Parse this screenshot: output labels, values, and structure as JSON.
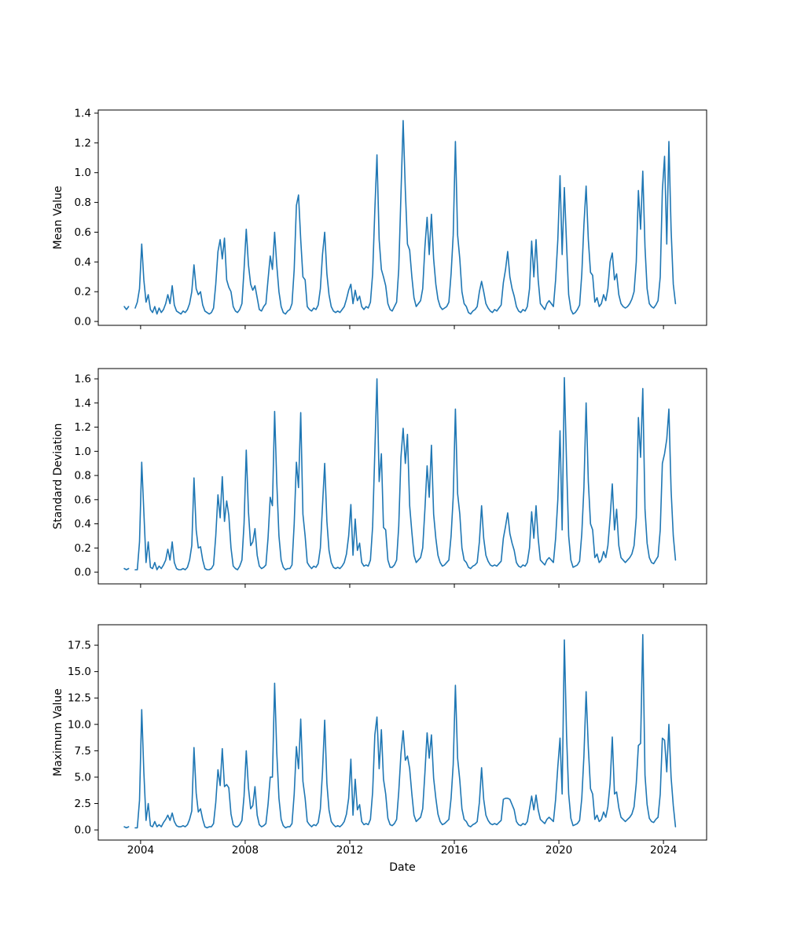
{
  "figure": {
    "background_color": "#ffffff",
    "series_color": "#1f77b4",
    "spine_color": "#000000"
  },
  "chart_data": [
    {
      "type": "line",
      "name": "mean",
      "title": "",
      "xlabel": "",
      "ylabel": "Mean Value",
      "x_frequency": "monthly",
      "x_start": 2003.375,
      "x_step_years": 0.0833333,
      "xlim": [
        2002.38,
        2025.65
      ],
      "ylim": [
        -0.026,
        1.421
      ],
      "xticks": [
        2004,
        2008,
        2012,
        2016,
        2020,
        2024
      ],
      "yticks": [
        0.0,
        0.2,
        0.4,
        0.6,
        0.8,
        1.0,
        1.2,
        1.4
      ],
      "show_xtick_labels": false,
      "legend": "off",
      "grid": "off",
      "values": [
        0.1,
        0.08,
        0.1,
        null,
        null,
        0.09,
        0.13,
        0.22,
        0.52,
        0.28,
        0.13,
        0.18,
        0.08,
        0.06,
        0.1,
        0.05,
        0.09,
        0.06,
        0.08,
        0.12,
        0.18,
        0.12,
        0.24,
        0.11,
        0.07,
        0.06,
        0.05,
        0.07,
        0.06,
        0.08,
        0.12,
        0.2,
        0.38,
        0.22,
        0.18,
        0.2,
        0.11,
        0.07,
        0.06,
        0.05,
        0.06,
        0.09,
        0.25,
        0.47,
        0.55,
        0.42,
        0.56,
        0.28,
        0.23,
        0.2,
        0.1,
        0.07,
        0.06,
        0.08,
        0.12,
        0.35,
        0.62,
        0.38,
        0.25,
        0.21,
        0.24,
        0.16,
        0.08,
        0.07,
        0.1,
        0.12,
        0.28,
        0.44,
        0.35,
        0.6,
        0.38,
        0.2,
        0.1,
        0.06,
        0.05,
        0.07,
        0.08,
        0.12,
        0.35,
        0.78,
        0.85,
        0.55,
        0.3,
        0.28,
        0.1,
        0.08,
        0.07,
        0.09,
        0.08,
        0.11,
        0.22,
        0.45,
        0.6,
        0.32,
        0.18,
        0.1,
        0.07,
        0.06,
        0.07,
        0.06,
        0.08,
        0.1,
        0.15,
        0.21,
        0.25,
        0.12,
        0.21,
        0.14,
        0.17,
        0.1,
        0.08,
        0.1,
        0.09,
        0.13,
        0.32,
        0.75,
        1.12,
        0.55,
        0.35,
        0.3,
        0.24,
        0.12,
        0.08,
        0.07,
        0.1,
        0.13,
        0.35,
        0.85,
        1.35,
        0.88,
        0.52,
        0.48,
        0.3,
        0.16,
        0.1,
        0.12,
        0.14,
        0.22,
        0.5,
        0.7,
        0.45,
        0.72,
        0.42,
        0.25,
        0.15,
        0.1,
        0.08,
        0.09,
        0.1,
        0.13,
        0.32,
        0.58,
        1.21,
        0.58,
        0.42,
        0.2,
        0.12,
        0.1,
        0.06,
        0.05,
        0.07,
        0.08,
        0.1,
        0.2,
        0.27,
        0.2,
        0.12,
        0.09,
        0.07,
        0.06,
        0.08,
        0.07,
        0.09,
        0.11,
        0.26,
        0.35,
        0.47,
        0.3,
        0.22,
        0.17,
        0.1,
        0.07,
        0.06,
        0.08,
        0.07,
        0.1,
        0.22,
        0.54,
        0.3,
        0.55,
        0.28,
        0.12,
        0.1,
        0.08,
        0.12,
        0.14,
        0.12,
        0.1,
        0.28,
        0.55,
        0.98,
        0.45,
        0.9,
        0.52,
        0.18,
        0.08,
        0.05,
        0.06,
        0.08,
        0.11,
        0.32,
        0.65,
        0.91,
        0.55,
        0.33,
        0.31,
        0.13,
        0.16,
        0.1,
        0.12,
        0.18,
        0.14,
        0.22,
        0.4,
        0.46,
        0.28,
        0.32,
        0.18,
        0.12,
        0.1,
        0.09,
        0.1,
        0.12,
        0.15,
        0.2,
        0.4,
        0.88,
        0.62,
        1.01,
        0.5,
        0.22,
        0.12,
        0.1,
        0.09,
        0.11,
        0.14,
        0.3,
        0.88,
        1.11,
        0.52,
        1.21,
        0.62,
        0.25,
        0.12
      ]
    },
    {
      "type": "line",
      "name": "std_dev",
      "title": "",
      "xlabel": "",
      "ylabel": "Standard Deviation",
      "x_frequency": "monthly",
      "x_start": 2003.375,
      "x_step_years": 0.0833333,
      "xlim": [
        2002.38,
        2025.65
      ],
      "ylim": [
        -0.097,
        1.685
      ],
      "xticks": [
        2004,
        2008,
        2012,
        2016,
        2020,
        2024
      ],
      "yticks": [
        0.0,
        0.2,
        0.4,
        0.6,
        0.8,
        1.0,
        1.2,
        1.4,
        1.6
      ],
      "show_xtick_labels": false,
      "legend": "off",
      "grid": "off",
      "values": [
        0.03,
        0.02,
        0.03,
        null,
        null,
        0.02,
        0.02,
        0.25,
        0.91,
        0.5,
        0.08,
        0.25,
        0.04,
        0.03,
        0.08,
        0.02,
        0.05,
        0.03,
        0.06,
        0.1,
        0.19,
        0.1,
        0.25,
        0.08,
        0.03,
        0.02,
        0.02,
        0.03,
        0.02,
        0.04,
        0.1,
        0.22,
        0.78,
        0.35,
        0.2,
        0.21,
        0.1,
        0.03,
        0.02,
        0.02,
        0.03,
        0.06,
        0.3,
        0.64,
        0.45,
        0.79,
        0.42,
        0.59,
        0.47,
        0.2,
        0.05,
        0.03,
        0.02,
        0.05,
        0.1,
        0.4,
        1.01,
        0.5,
        0.22,
        0.25,
        0.36,
        0.14,
        0.05,
        0.03,
        0.04,
        0.06,
        0.28,
        0.62,
        0.55,
        1.33,
        0.75,
        0.3,
        0.1,
        0.04,
        0.02,
        0.03,
        0.03,
        0.06,
        0.4,
        0.91,
        0.7,
        1.32,
        0.48,
        0.3,
        0.08,
        0.05,
        0.03,
        0.05,
        0.04,
        0.07,
        0.2,
        0.55,
        0.9,
        0.42,
        0.18,
        0.08,
        0.04,
        0.03,
        0.04,
        0.03,
        0.05,
        0.08,
        0.15,
        0.3,
        0.56,
        0.14,
        0.44,
        0.18,
        0.24,
        0.08,
        0.05,
        0.06,
        0.05,
        0.1,
        0.38,
        1.0,
        1.6,
        0.75,
        0.98,
        0.37,
        0.35,
        0.1,
        0.04,
        0.04,
        0.06,
        0.1,
        0.38,
        0.95,
        1.19,
        0.9,
        1.14,
        0.55,
        0.33,
        0.14,
        0.08,
        0.1,
        0.12,
        0.2,
        0.52,
        0.88,
        0.62,
        1.05,
        0.48,
        0.28,
        0.14,
        0.08,
        0.05,
        0.06,
        0.08,
        0.1,
        0.3,
        0.62,
        1.35,
        0.65,
        0.48,
        0.2,
        0.1,
        0.08,
        0.04,
        0.03,
        0.05,
        0.06,
        0.08,
        0.25,
        0.55,
        0.28,
        0.14,
        0.09,
        0.06,
        0.05,
        0.06,
        0.05,
        0.07,
        0.09,
        0.28,
        0.38,
        0.49,
        0.32,
        0.24,
        0.18,
        0.08,
        0.05,
        0.04,
        0.06,
        0.05,
        0.08,
        0.2,
        0.5,
        0.28,
        0.55,
        0.28,
        0.1,
        0.08,
        0.06,
        0.1,
        0.12,
        0.1,
        0.08,
        0.28,
        0.6,
        1.17,
        0.35,
        1.61,
        0.9,
        0.3,
        0.1,
        0.04,
        0.05,
        0.06,
        0.09,
        0.32,
        0.7,
        1.4,
        0.75,
        0.4,
        0.35,
        0.12,
        0.15,
        0.08,
        0.1,
        0.17,
        0.12,
        0.22,
        0.45,
        0.73,
        0.35,
        0.52,
        0.22,
        0.12,
        0.1,
        0.08,
        0.1,
        0.12,
        0.15,
        0.22,
        0.45,
        1.28,
        0.95,
        1.52,
        0.52,
        0.24,
        0.12,
        0.08,
        0.07,
        0.1,
        0.13,
        0.35,
        0.9,
        0.98,
        1.1,
        1.35,
        0.68,
        0.3,
        0.1
      ]
    },
    {
      "type": "line",
      "name": "max",
      "title": "",
      "xlabel": "Date",
      "ylabel": "Maximum Value",
      "x_frequency": "monthly",
      "x_start": 2003.375,
      "x_step_years": 0.0833333,
      "xlim": [
        2002.38,
        2025.65
      ],
      "ylim": [
        -0.96,
        19.44
      ],
      "xticks": [
        2004,
        2008,
        2012,
        2016,
        2020,
        2024
      ],
      "yticks": [
        0.0,
        2.5,
        5.0,
        7.5,
        10.0,
        12.5,
        15.0,
        17.5
      ],
      "show_xtick_labels": true,
      "legend": "off",
      "grid": "off",
      "values": [
        0.3,
        0.2,
        0.3,
        null,
        null,
        0.2,
        0.2,
        2.8,
        11.4,
        5.5,
        0.9,
        2.5,
        0.4,
        0.3,
        0.8,
        0.3,
        0.5,
        0.3,
        0.7,
        1.0,
        1.4,
        0.9,
        1.6,
        0.8,
        0.4,
        0.3,
        0.3,
        0.4,
        0.3,
        0.5,
        1.0,
        1.8,
        7.8,
        3.5,
        1.7,
        2.0,
        1.0,
        0.3,
        0.2,
        0.3,
        0.3,
        0.6,
        2.6,
        5.7,
        4.2,
        7.7,
        4.1,
        4.3,
        4.0,
        1.5,
        0.5,
        0.3,
        0.3,
        0.5,
        0.9,
        3.2,
        7.5,
        4.0,
        2.0,
        2.3,
        4.1,
        1.4,
        0.5,
        0.3,
        0.4,
        0.6,
        2.4,
        5.0,
        5.0,
        13.9,
        7.4,
        3.0,
        1.0,
        0.4,
        0.2,
        0.3,
        0.3,
        0.6,
        3.4,
        7.9,
        5.8,
        10.5,
        4.6,
        3.0,
        0.8,
        0.5,
        0.3,
        0.5,
        0.4,
        0.7,
        2.0,
        5.5,
        10.4,
        4.4,
        1.9,
        0.8,
        0.5,
        0.3,
        0.4,
        0.3,
        0.5,
        0.8,
        1.5,
        3.0,
        6.7,
        1.4,
        4.8,
        1.9,
        2.4,
        0.8,
        0.5,
        0.6,
        0.5,
        1.0,
        3.6,
        9.0,
        10.7,
        5.8,
        9.5,
        4.8,
        3.4,
        1.1,
        0.5,
        0.4,
        0.6,
        1.0,
        3.6,
        7.2,
        9.4,
        6.6,
        7.0,
        5.8,
        3.4,
        1.4,
        0.8,
        1.0,
        1.2,
        2.0,
        5.4,
        9.2,
        6.8,
        9.0,
        4.9,
        3.0,
        1.5,
        0.8,
        0.5,
        0.6,
        0.8,
        1.0,
        3.0,
        6.2,
        13.7,
        6.8,
        4.7,
        2.0,
        1.0,
        0.8,
        0.4,
        0.3,
        0.5,
        0.6,
        0.8,
        2.6,
        5.9,
        2.9,
        1.4,
        0.9,
        0.6,
        0.5,
        0.6,
        0.5,
        0.7,
        0.9,
        2.9,
        3.0,
        3.0,
        2.9,
        2.4,
        1.9,
        0.8,
        0.5,
        0.4,
        0.6,
        0.5,
        0.8,
        2.0,
        3.2,
        1.9,
        3.3,
        1.9,
        1.0,
        0.8,
        0.6,
        1.0,
        1.2,
        1.0,
        0.8,
        2.9,
        6.0,
        8.7,
        3.4,
        18.0,
        9.0,
        3.4,
        1.1,
        0.4,
        0.5,
        0.6,
        0.9,
        3.0,
        7.0,
        13.1,
        7.8,
        3.9,
        3.4,
        1.0,
        1.4,
        0.8,
        1.0,
        1.7,
        1.2,
        2.2,
        4.4,
        8.8,
        3.4,
        3.6,
        2.1,
        1.2,
        1.0,
        0.8,
        1.0,
        1.2,
        1.5,
        2.2,
        4.4,
        8.0,
        8.2,
        18.5,
        5.2,
        2.4,
        1.1,
        0.8,
        0.7,
        1.0,
        1.2,
        3.4,
        8.7,
        8.5,
        5.5,
        10.0,
        5.0,
        2.3,
        0.3
      ]
    }
  ]
}
